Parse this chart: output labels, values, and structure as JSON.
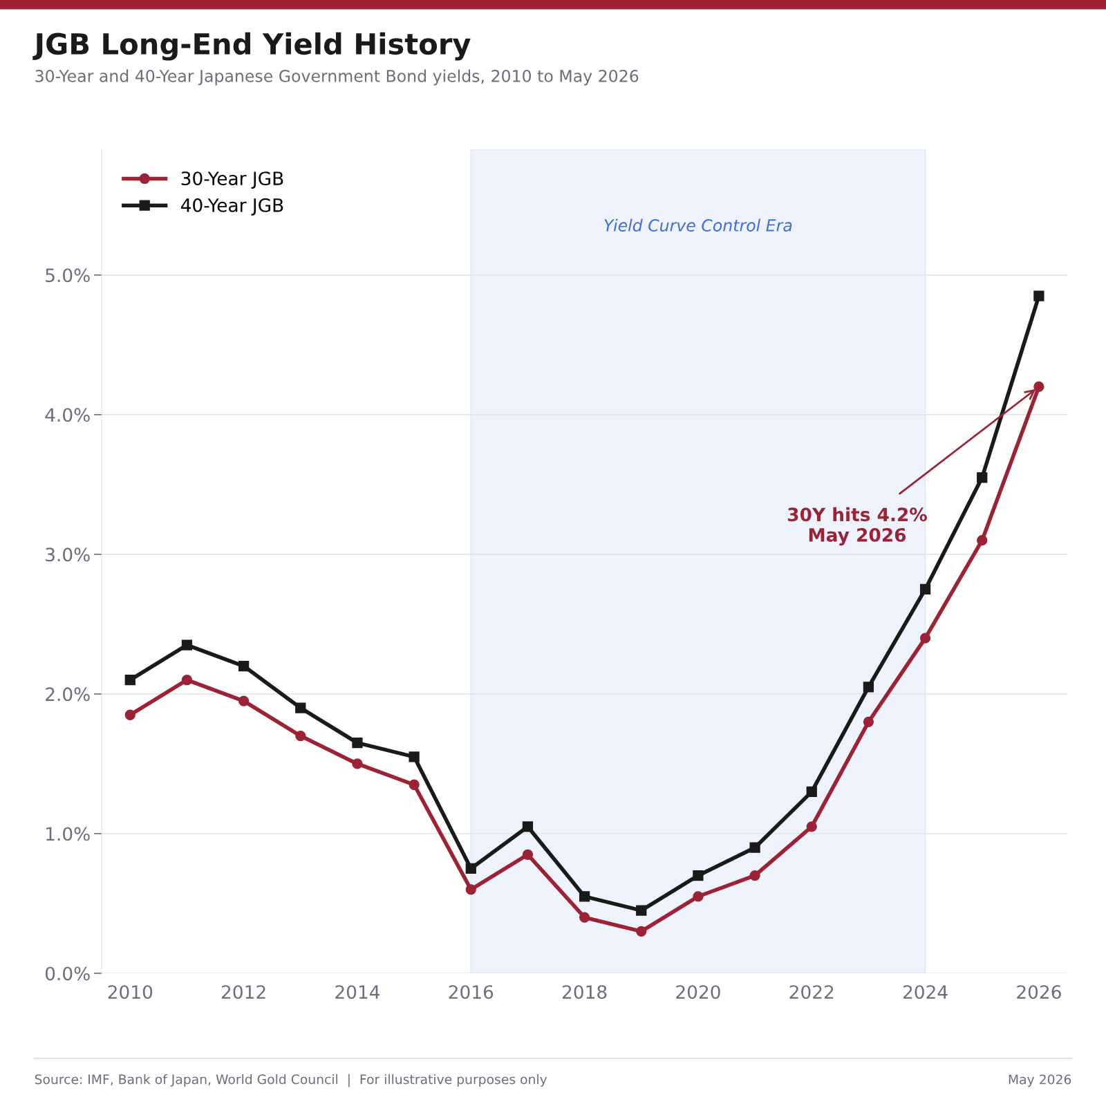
{
  "chart_data": {
    "type": "line",
    "title": "JGB Long-End Yield History",
    "subtitle": "30-Year and 40-Year Japanese Government Bond yields, 2010 to May 2026",
    "x": [
      2010,
      2011,
      2012,
      2013,
      2014,
      2015,
      2016,
      2017,
      2018,
      2019,
      2020,
      2021,
      2022,
      2023,
      2024,
      2025,
      2026
    ],
    "series": [
      {
        "name": "30-Year JGB",
        "color": "#9b2335",
        "marker": "circle",
        "values": [
          1.85,
          2.1,
          1.95,
          1.7,
          1.5,
          1.35,
          0.6,
          0.85,
          0.4,
          0.3,
          0.55,
          0.7,
          1.05,
          1.8,
          2.4,
          3.1,
          4.2
        ]
      },
      {
        "name": "40-Year JGB",
        "color": "#1a1a1a",
        "marker": "square",
        "values": [
          2.1,
          2.35,
          2.2,
          1.9,
          1.65,
          1.55,
          0.75,
          1.05,
          0.55,
          0.45,
          0.7,
          0.9,
          1.3,
          2.05,
          2.75,
          3.55,
          4.85
        ]
      }
    ],
    "xlim": [
      2009.5,
      2026.5
    ],
    "xticks": [
      2010,
      2012,
      2014,
      2016,
      2018,
      2020,
      2022,
      2024,
      2026
    ],
    "ylim": [
      0,
      5.9
    ],
    "yticks": [
      {
        "value": 0,
        "label": "0.0%"
      },
      {
        "value": 1,
        "label": "1.0%"
      },
      {
        "value": 2,
        "label": "2.0%"
      },
      {
        "value": 3,
        "label": "3.0%"
      },
      {
        "value": 4,
        "label": "4.0%"
      },
      {
        "value": 5,
        "label": "5.0%"
      }
    ],
    "bands": [
      {
        "axis": "x",
        "from": 2016,
        "to": 2024,
        "label": "Yield Curve Control Era",
        "color": "#eef3fd"
      }
    ],
    "annotations": [
      {
        "text": "30Y hits 4.2%\nMay 2026",
        "x": 2026,
        "y": 4.2
      },
      "Source: IMF, Bank of Japan, World Gold Council  |  For illustrative purposes only",
      "May 2026"
    ],
    "grid": "y",
    "legend": "top left",
    "line_style": "solid"
  }
}
